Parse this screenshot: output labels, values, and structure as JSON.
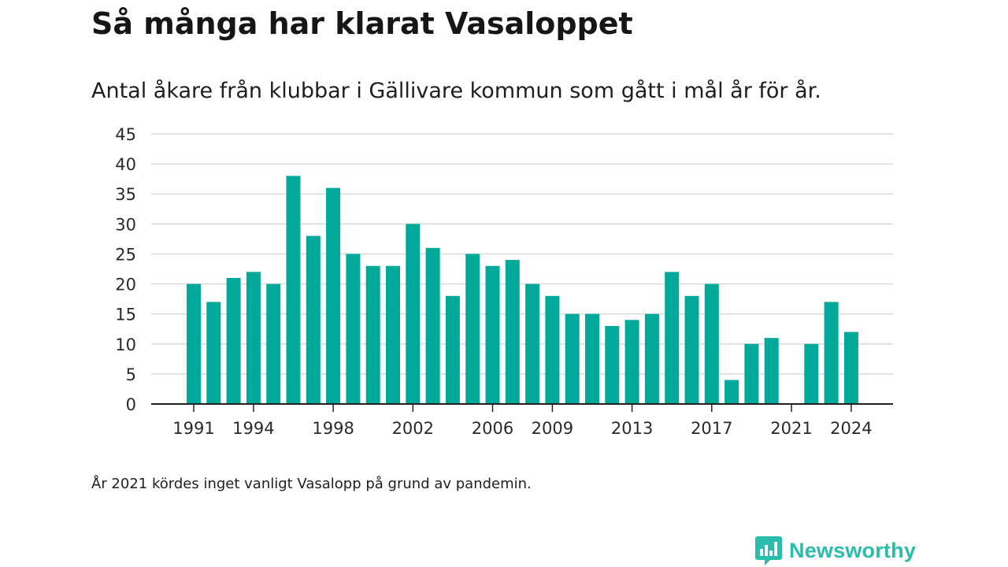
{
  "title": "Så många har klarat Vasaloppet",
  "subtitle": "Antal åkare från klubbar i Gällivare kommun som gått i mål år för år.",
  "note": "År 2021 kördes inget vanligt Vasalopp på grund av pandemin.",
  "brand": {
    "name": "Newsworthy",
    "icon": "newsworthy-logo-icon"
  },
  "colors": {
    "bar": "#00a99a",
    "grid": "#d9d9d9",
    "axis": "#222222",
    "brand": "#2bbcae"
  },
  "chart_data": {
    "type": "bar",
    "title": "",
    "xlabel": "",
    "ylabel": "",
    "ylim": [
      0,
      45
    ],
    "yticks": [
      0,
      5,
      10,
      15,
      20,
      25,
      30,
      35,
      40,
      45
    ],
    "grid": true,
    "categories": [
      1991,
      1992,
      1993,
      1994,
      1995,
      1996,
      1997,
      1998,
      1999,
      2000,
      2001,
      2002,
      2003,
      2004,
      2005,
      2006,
      2007,
      2008,
      2009,
      2010,
      2011,
      2012,
      2013,
      2014,
      2015,
      2016,
      2017,
      2018,
      2019,
      2020,
      2021,
      2022,
      2023,
      2024
    ],
    "values": [
      20,
      17,
      21,
      22,
      20,
      38,
      28,
      36,
      25,
      23,
      23,
      30,
      26,
      18,
      25,
      23,
      24,
      20,
      18,
      15,
      15,
      13,
      14,
      15,
      22,
      18,
      20,
      4,
      10,
      11,
      0,
      10,
      17,
      12
    ],
    "xtick_labels": [
      "1991",
      "1994",
      "1998",
      "2002",
      "2006",
      "2009",
      "2013",
      "2017",
      "2021",
      "2024"
    ]
  }
}
